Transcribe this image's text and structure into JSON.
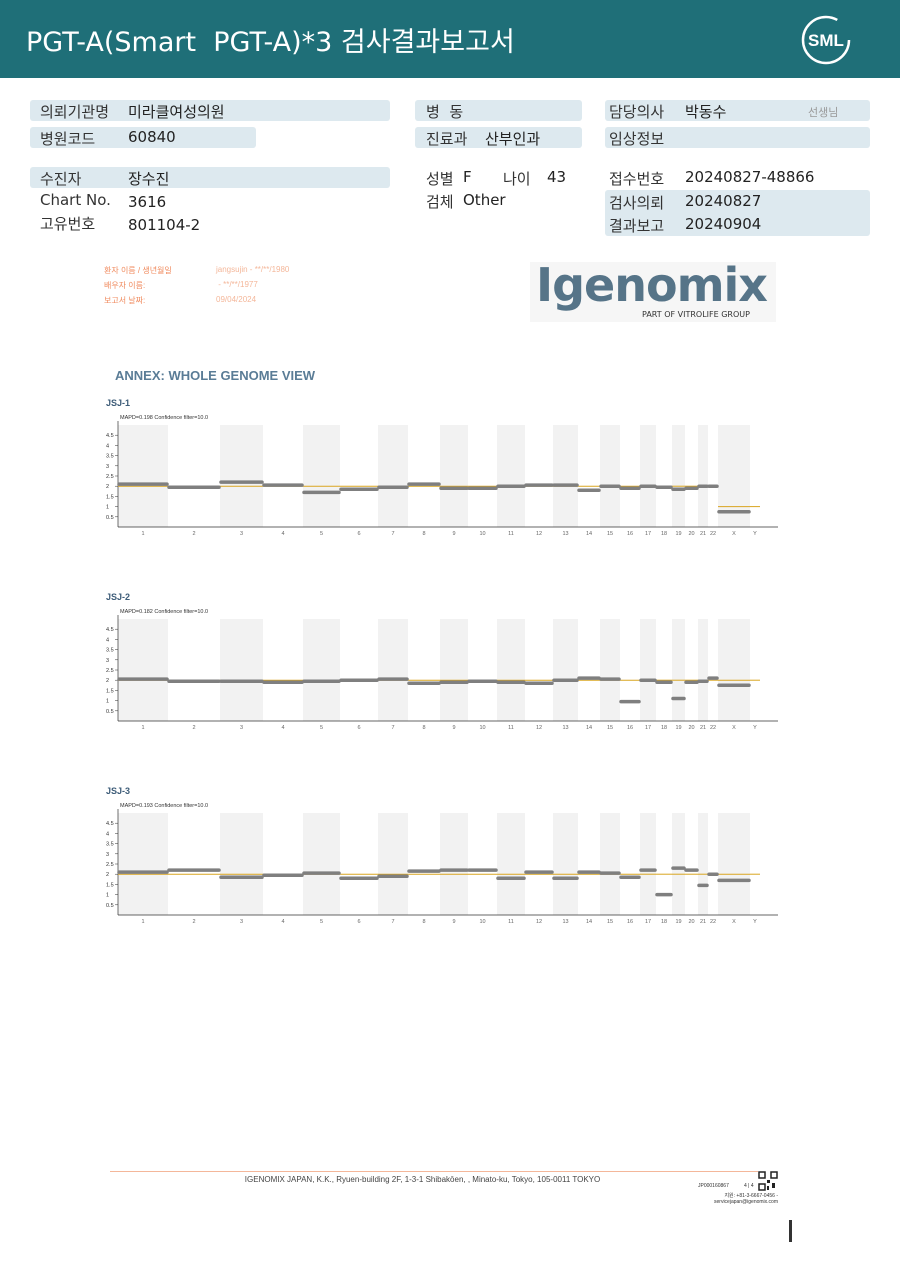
{
  "header": {
    "title": "PGT-A(Smart  PGT-A)*3 검사결과보고서",
    "logo": "SML"
  },
  "info": {
    "left": [
      {
        "label": "의뢰기관명",
        "value": "미라클여성의원"
      },
      {
        "label": "병원코드",
        "value": "60840"
      },
      {
        "label": "수진자",
        "value": "장수진"
      },
      {
        "label": "Chart No.",
        "value": "3616"
      },
      {
        "label": "고유번호",
        "value": "801104-2"
      }
    ],
    "middle": {
      "ward": "병  동",
      "dept_label": "진료과",
      "dept": "산부인과",
      "sex_label": "성별",
      "sex": "F",
      "age_label": "나이",
      "age": "43",
      "specimen_label": "검체",
      "specimen": "Other"
    },
    "right": {
      "doctor_label": "담당의사",
      "doctor": "박동수",
      "doctor_suffix": "선생님",
      "clinical_label": "임상정보",
      "receipt_label": "접수번호",
      "receipt": "20240827-48866",
      "request_label": "검사의뢰",
      "request": "20240827",
      "report_label": "결과보고",
      "report": "20240904"
    }
  },
  "lab": {
    "patient_label": "환자 이름 / 생년월일",
    "patient": "jangsujin - **/**/1980",
    "partner_label": "배우자 이름:",
    "partner": " - **/**/1977",
    "date_label": "보고서 날짜:",
    "date": "09/04/2024",
    "logo": "Igenomix",
    "logo_sub": "PART OF VITROLIFE GROUP"
  },
  "annex": {
    "title": "ANNEX: WHOLE GENOME VIEW",
    "categories": [
      "1",
      "2",
      "3",
      "4",
      "5",
      "6",
      "7",
      "8",
      "9",
      "10",
      "11",
      "12",
      "13",
      "14",
      "15",
      "16",
      "17",
      "18",
      "19",
      "20",
      "21",
      "22",
      "X",
      "Y"
    ],
    "ylim": [
      0,
      5
    ],
    "yticks": [
      0.5,
      1,
      1.5,
      2,
      2.5,
      3,
      3.5,
      4,
      4.5
    ],
    "charts": [
      {
        "name": "JSJ-1",
        "subtitle": "MAPD=0.198 Confidence filter=10.0",
        "color": "#7f7f7f",
        "reference_color": "#d9a520",
        "values": [
          2.1,
          1.95,
          2.2,
          2.05,
          1.7,
          1.85,
          1.95,
          2.1,
          1.9,
          1.9,
          2.0,
          2.05,
          2.05,
          1.8,
          2.0,
          1.9,
          2.0,
          1.95,
          1.85,
          1.9,
          2.0,
          2.0,
          0.75,
          null
        ],
        "reference": [
          2,
          2,
          2,
          2,
          2,
          2,
          2,
          2,
          2,
          2,
          2,
          2,
          2,
          2,
          2,
          2,
          2,
          2,
          2,
          2,
          2,
          2,
          1,
          1
        ]
      },
      {
        "name": "JSJ-2",
        "subtitle": "MAPD=0.182 Confidence filter=10.0",
        "color": "#7f7f7f",
        "reference_color": "#d9a520",
        "values": [
          2.05,
          1.95,
          1.95,
          1.9,
          1.95,
          2.0,
          2.05,
          1.85,
          1.9,
          1.95,
          1.9,
          1.85,
          2.0,
          2.1,
          2.05,
          0.95,
          2.0,
          1.9,
          1.1,
          1.9,
          1.95,
          2.1,
          1.75,
          null
        ],
        "reference": [
          2,
          2,
          2,
          2,
          2,
          2,
          2,
          2,
          2,
          2,
          2,
          2,
          2,
          2,
          2,
          2,
          2,
          2,
          2,
          2,
          2,
          2,
          2,
          2
        ]
      },
      {
        "name": "JSJ-3",
        "subtitle": "MAPD=0.193 Confidence filter=10.0",
        "color": "#7f7f7f",
        "reference_color": "#d9a520",
        "values": [
          2.1,
          2.2,
          1.85,
          1.95,
          2.05,
          1.8,
          1.9,
          2.15,
          2.2,
          2.2,
          1.8,
          2.1,
          1.8,
          2.1,
          2.05,
          1.85,
          2.2,
          1.0,
          2.3,
          2.2,
          1.45,
          2.0,
          1.7,
          null
        ],
        "reference": [
          2,
          2,
          2,
          2,
          2,
          2,
          2,
          2,
          2,
          2,
          2,
          2,
          2,
          2,
          2,
          2,
          2,
          2,
          2,
          2,
          2,
          2,
          2,
          2
        ]
      }
    ]
  },
  "footer": {
    "address": "IGENOMIX JAPAN, K.K., Ryuen-building 2F, 1-3-1 Shibakōen, , Minato-ku, Tokyo, 105-0011 TOKYO",
    "code": "JP000160867",
    "page": "4 | 4",
    "phone": "지원: +81-3-6667-0456 -",
    "email": "servicejapan@igenomix.com"
  }
}
